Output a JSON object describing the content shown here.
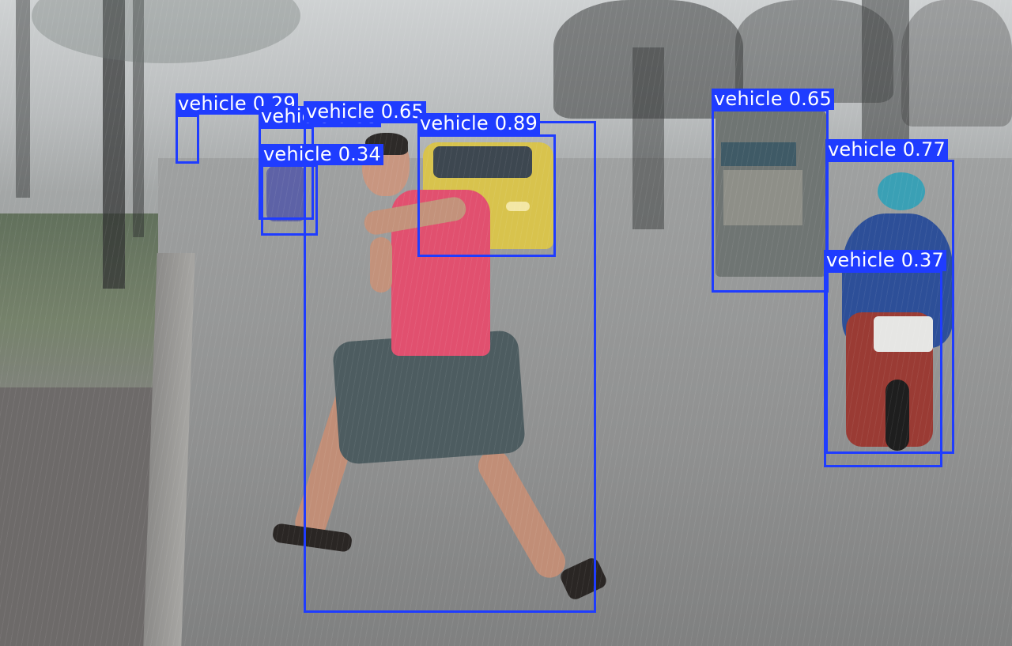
{
  "detections": [
    {
      "label": "vehicle 0.89",
      "color": "#1f3cff"
    },
    {
      "label": "vehicle 0.65",
      "color": "#1f3cff"
    },
    {
      "label": "vehicle 0.34",
      "color": "#1f3cff"
    },
    {
      "label": "vehicle 0.29",
      "color": "#1f3cff"
    },
    {
      "label": "vehicle 0.35",
      "color": "#1f3cff"
    },
    {
      "label": "vehicle 0.65",
      "color": "#1f3cff"
    },
    {
      "label": "vehicle 0.77",
      "color": "#1f3cff"
    },
    {
      "label": "vehicle 0.37",
      "color": "#1f3cff"
    }
  ]
}
